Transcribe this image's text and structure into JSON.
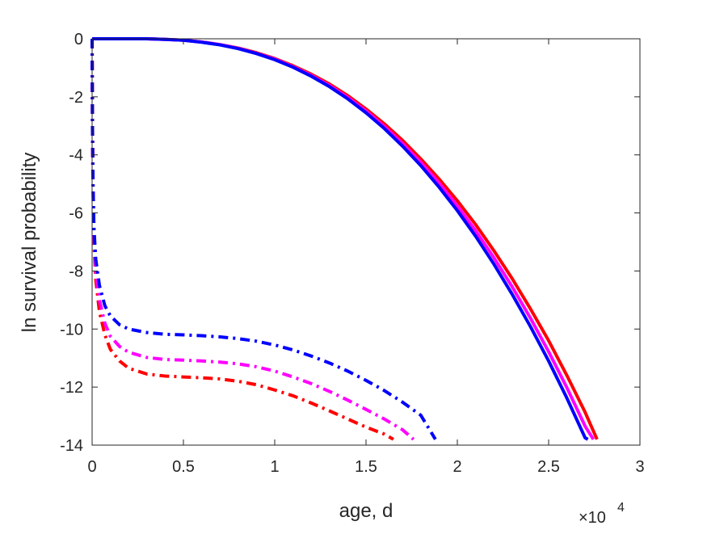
{
  "chart_data": {
    "type": "line",
    "title": "",
    "xlabel": "age, d",
    "ylabel": "ln survival probability",
    "x_multiplier_label": "×10",
    "x_multiplier_exponent": "4",
    "xlim": [
      0,
      30000
    ],
    "ylim": [
      -14,
      0
    ],
    "xticks": [
      0,
      5000,
      10000,
      15000,
      20000,
      25000,
      30000
    ],
    "xtick_labels": [
      "0",
      "0.5",
      "1",
      "1.5",
      "2",
      "2.5",
      "3"
    ],
    "yticks": [
      0,
      -2,
      -4,
      -6,
      -8,
      -10,
      -12,
      -14
    ],
    "ytick_labels": [
      "0",
      "-2",
      "-4",
      "-6",
      "-8",
      "-10",
      "-12",
      "-14"
    ],
    "grid": false,
    "legend": "none",
    "series": [
      {
        "color": "#ff0000",
        "style": "solid",
        "points": [
          [
            0,
            0
          ],
          [
            1000,
            0
          ],
          [
            2000,
            0
          ],
          [
            3000,
            0
          ],
          [
            4000,
            -0.02
          ],
          [
            5000,
            -0.05
          ],
          [
            6000,
            -0.11
          ],
          [
            7000,
            -0.2
          ],
          [
            8000,
            -0.32
          ],
          [
            9000,
            -0.48
          ],
          [
            10000,
            -0.68
          ],
          [
            11000,
            -0.93
          ],
          [
            12000,
            -1.22
          ],
          [
            13000,
            -1.56
          ],
          [
            14000,
            -1.96
          ],
          [
            15000,
            -2.42
          ],
          [
            16000,
            -2.93
          ],
          [
            17000,
            -3.5
          ],
          [
            18000,
            -4.14
          ],
          [
            19000,
            -4.83
          ],
          [
            20000,
            -5.58
          ],
          [
            21000,
            -6.4
          ],
          [
            22000,
            -7.3
          ],
          [
            23000,
            -8.26
          ],
          [
            24000,
            -9.3
          ],
          [
            25000,
            -10.4
          ],
          [
            26000,
            -11.6
          ],
          [
            27000,
            -12.87
          ],
          [
            27650,
            -13.8
          ]
        ]
      },
      {
        "color": "#ff00ff",
        "style": "solid",
        "points": [
          [
            0,
            0
          ],
          [
            1000,
            0
          ],
          [
            2000,
            0
          ],
          [
            3000,
            0
          ],
          [
            4000,
            -0.02
          ],
          [
            5000,
            -0.05
          ],
          [
            6000,
            -0.11
          ],
          [
            7000,
            -0.2
          ],
          [
            8000,
            -0.33
          ],
          [
            9000,
            -0.5
          ],
          [
            10000,
            -0.7
          ],
          [
            11000,
            -0.96
          ],
          [
            12000,
            -1.26
          ],
          [
            13000,
            -1.61
          ],
          [
            14000,
            -2.02
          ],
          [
            15000,
            -2.49
          ],
          [
            16000,
            -3.02
          ],
          [
            17000,
            -3.61
          ],
          [
            18000,
            -4.26
          ],
          [
            19000,
            -4.97
          ],
          [
            20000,
            -5.76
          ],
          [
            21000,
            -6.61
          ],
          [
            22000,
            -7.54
          ],
          [
            23000,
            -8.54
          ],
          [
            24000,
            -9.62
          ],
          [
            25000,
            -10.78
          ],
          [
            26000,
            -12.02
          ],
          [
            27000,
            -13.35
          ],
          [
            27450,
            -13.8
          ]
        ]
      },
      {
        "color": "#0000ff",
        "style": "solid",
        "points": [
          [
            0,
            0
          ],
          [
            1000,
            0
          ],
          [
            2000,
            0
          ],
          [
            3000,
            0
          ],
          [
            4000,
            -0.02
          ],
          [
            5000,
            -0.05
          ],
          [
            6000,
            -0.12
          ],
          [
            7000,
            -0.21
          ],
          [
            8000,
            -0.34
          ],
          [
            9000,
            -0.51
          ],
          [
            10000,
            -0.72
          ],
          [
            11000,
            -0.98
          ],
          [
            12000,
            -1.29
          ],
          [
            13000,
            -1.65
          ],
          [
            14000,
            -2.07
          ],
          [
            15000,
            -2.55
          ],
          [
            16000,
            -3.09
          ],
          [
            17000,
            -3.7
          ],
          [
            18000,
            -4.37
          ],
          [
            19000,
            -5.11
          ],
          [
            20000,
            -5.92
          ],
          [
            21000,
            -6.8
          ],
          [
            22000,
            -7.76
          ],
          [
            23000,
            -8.8
          ],
          [
            24000,
            -9.91
          ],
          [
            25000,
            -11.1
          ],
          [
            26000,
            -12.38
          ],
          [
            27000,
            -13.75
          ],
          [
            27150,
            -13.8
          ]
        ]
      },
      {
        "color": "#ff0000",
        "style": "dashdot",
        "points": [
          [
            0,
            0
          ],
          [
            20,
            -3
          ],
          [
            50,
            -5.2
          ],
          [
            100,
            -7
          ],
          [
            200,
            -8.3
          ],
          [
            400,
            -9.4
          ],
          [
            700,
            -10.2
          ],
          [
            1000,
            -10.7
          ],
          [
            1500,
            -11.1
          ],
          [
            2000,
            -11.35
          ],
          [
            3000,
            -11.55
          ],
          [
            4000,
            -11.62
          ],
          [
            5000,
            -11.65
          ],
          [
            6000,
            -11.68
          ],
          [
            7000,
            -11.72
          ],
          [
            8000,
            -11.8
          ],
          [
            9000,
            -11.92
          ],
          [
            10000,
            -12.1
          ],
          [
            11000,
            -12.3
          ],
          [
            12000,
            -12.55
          ],
          [
            13000,
            -12.82
          ],
          [
            14000,
            -13.1
          ],
          [
            15000,
            -13.38
          ],
          [
            16000,
            -13.62
          ],
          [
            16500,
            -13.8
          ]
        ]
      },
      {
        "color": "#ff00ff",
        "style": "dashdot",
        "points": [
          [
            0,
            0
          ],
          [
            20,
            -3
          ],
          [
            50,
            -5.1
          ],
          [
            100,
            -6.8
          ],
          [
            200,
            -8
          ],
          [
            400,
            -9
          ],
          [
            700,
            -9.8
          ],
          [
            1000,
            -10.25
          ],
          [
            1500,
            -10.6
          ],
          [
            2000,
            -10.8
          ],
          [
            3000,
            -10.98
          ],
          [
            4000,
            -11.05
          ],
          [
            5000,
            -11.07
          ],
          [
            6000,
            -11.1
          ],
          [
            7000,
            -11.14
          ],
          [
            8000,
            -11.2
          ],
          [
            9000,
            -11.3
          ],
          [
            10000,
            -11.45
          ],
          [
            11000,
            -11.65
          ],
          [
            12000,
            -11.88
          ],
          [
            13000,
            -12.15
          ],
          [
            14000,
            -12.45
          ],
          [
            15000,
            -12.77
          ],
          [
            16000,
            -13.1
          ],
          [
            17000,
            -13.47
          ],
          [
            17600,
            -13.8
          ]
        ]
      },
      {
        "color": "#0000ff",
        "style": "dashdot",
        "points": [
          [
            0,
            0
          ],
          [
            20,
            -3
          ],
          [
            50,
            -5
          ],
          [
            100,
            -6.5
          ],
          [
            200,
            -7.6
          ],
          [
            400,
            -8.5
          ],
          [
            700,
            -9.2
          ],
          [
            1000,
            -9.55
          ],
          [
            1500,
            -9.85
          ],
          [
            2000,
            -10.0
          ],
          [
            3000,
            -10.12
          ],
          [
            4000,
            -10.18
          ],
          [
            5000,
            -10.2
          ],
          [
            6000,
            -10.23
          ],
          [
            7000,
            -10.27
          ],
          [
            8000,
            -10.33
          ],
          [
            9000,
            -10.42
          ],
          [
            10000,
            -10.55
          ],
          [
            11000,
            -10.72
          ],
          [
            12000,
            -10.93
          ],
          [
            13000,
            -11.17
          ],
          [
            14000,
            -11.45
          ],
          [
            15000,
            -11.77
          ],
          [
            16000,
            -12.12
          ],
          [
            17000,
            -12.52
          ],
          [
            18000,
            -12.97
          ],
          [
            18800,
            -13.8
          ]
        ]
      }
    ]
  }
}
